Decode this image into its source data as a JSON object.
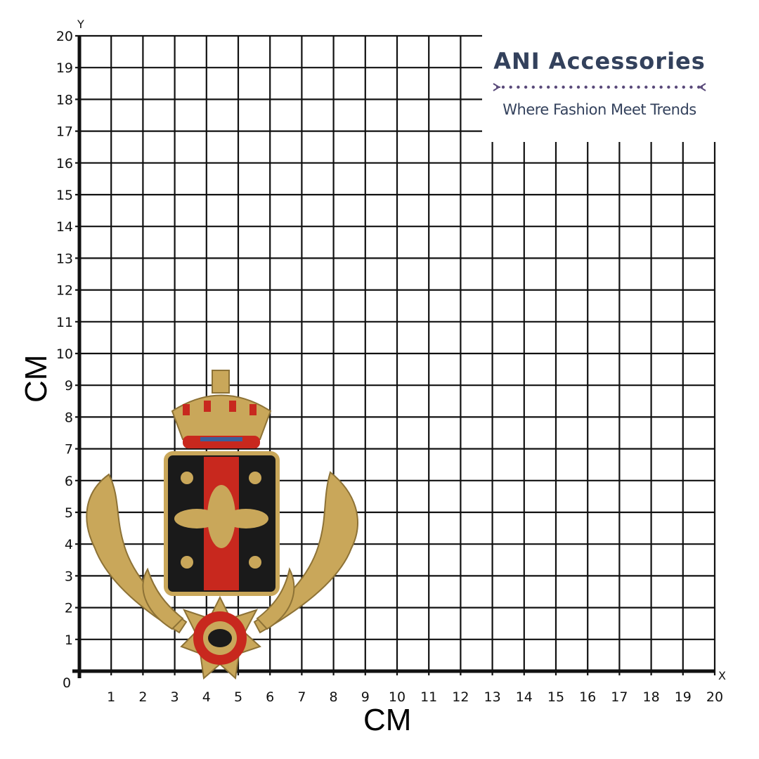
{
  "grid": {
    "x_axis_letter": "X",
    "y_axis_letter": "Y",
    "x_ticks": [
      "0",
      "1",
      "2",
      "3",
      "4",
      "5",
      "6",
      "7",
      "8",
      "9",
      "10",
      "11",
      "12",
      "13",
      "14",
      "15",
      "16",
      "17",
      "18",
      "19",
      "20"
    ],
    "y_ticks": [
      "0",
      "1",
      "2",
      "3",
      "4",
      "5",
      "6",
      "7",
      "8",
      "9",
      "10",
      "11",
      "12",
      "13",
      "14",
      "15",
      "16",
      "17",
      "18",
      "19",
      "20"
    ],
    "x_unit": "CM",
    "y_unit": "CM"
  },
  "brand": {
    "name": "ANI Accessories",
    "tagline": "Where Fashion Meet Trends",
    "color": "#33415c",
    "divider_color": "#5a4a7a"
  },
  "product": {
    "description_icon": "crest-bee-patch",
    "colors": {
      "gold": "#c9a75a",
      "red": "#c8281e",
      "black": "#1a1a1a",
      "blue": "#3b5f9a"
    }
  }
}
